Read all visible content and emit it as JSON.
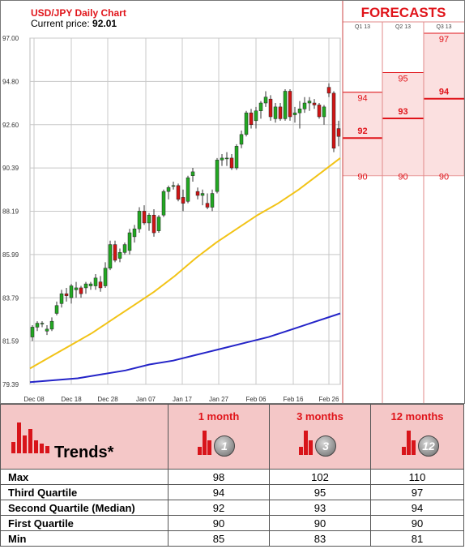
{
  "header": {
    "title": "USD/JPY Daily Chart",
    "price_label": "Current price:",
    "price_value": "92.01"
  },
  "forecast_panel": {
    "title": "FORECASTS",
    "columns": [
      {
        "label": "Q1 13",
        "high": "94",
        "mid": "92",
        "low": "90"
      },
      {
        "label": "Q2 13",
        "high": "95",
        "mid": "93",
        "low": "90"
      },
      {
        "label": "Q3 13",
        "high": "97",
        "mid": "94",
        "low": "90"
      }
    ]
  },
  "chart_data": {
    "type": "candlestick",
    "y_ticks": [
      "97.00",
      "94.80",
      "92.60",
      "90.39",
      "88.19",
      "85.99",
      "83.79",
      "81.59",
      "79.39"
    ],
    "x_ticks": [
      "Dec 08",
      "Dec 18",
      "Dec 28",
      "Jan 07",
      "Jan 17",
      "Jan 27",
      "Feb 06",
      "Feb 16",
      "Feb 26"
    ],
    "ylim": [
      79.39,
      97.0
    ],
    "grid": true,
    "candles": [
      {
        "o": 81.8,
        "h": 82.4,
        "l": 81.6,
        "c": 82.3
      },
      {
        "o": 82.3,
        "h": 82.6,
        "l": 82.1,
        "c": 82.5
      },
      {
        "o": 82.5,
        "h": 82.6,
        "l": 82.3,
        "c": 82.5
      },
      {
        "o": 82.1,
        "h": 82.4,
        "l": 81.9,
        "c": 82.2
      },
      {
        "o": 82.2,
        "h": 82.8,
        "l": 82.1,
        "c": 82.6
      },
      {
        "o": 83.0,
        "h": 83.6,
        "l": 82.9,
        "c": 83.4
      },
      {
        "o": 83.5,
        "h": 84.2,
        "l": 83.3,
        "c": 84.0
      },
      {
        "o": 84.0,
        "h": 84.3,
        "l": 83.6,
        "c": 83.9
      },
      {
        "o": 83.8,
        "h": 84.5,
        "l": 83.5,
        "c": 84.4
      },
      {
        "o": 84.2,
        "h": 84.6,
        "l": 83.8,
        "c": 84.3
      },
      {
        "o": 84.3,
        "h": 84.4,
        "l": 83.8,
        "c": 84.0
      },
      {
        "o": 84.3,
        "h": 84.6,
        "l": 84.0,
        "c": 84.5
      },
      {
        "o": 84.4,
        "h": 84.6,
        "l": 84.2,
        "c": 84.5
      },
      {
        "o": 84.4,
        "h": 85.0,
        "l": 84.2,
        "c": 84.8
      },
      {
        "o": 84.6,
        "h": 84.9,
        "l": 84.1,
        "c": 84.3
      },
      {
        "o": 84.4,
        "h": 85.6,
        "l": 84.3,
        "c": 85.3
      },
      {
        "o": 85.3,
        "h": 86.7,
        "l": 85.2,
        "c": 86.5
      },
      {
        "o": 86.5,
        "h": 86.7,
        "l": 85.6,
        "c": 85.7
      },
      {
        "o": 85.8,
        "h": 86.3,
        "l": 85.6,
        "c": 86.1
      },
      {
        "o": 86.1,
        "h": 86.6,
        "l": 86.0,
        "c": 86.5
      },
      {
        "o": 86.2,
        "h": 87.3,
        "l": 86.0,
        "c": 87.1
      },
      {
        "o": 86.9,
        "h": 87.5,
        "l": 86.6,
        "c": 87.3
      },
      {
        "o": 87.3,
        "h": 88.4,
        "l": 87.1,
        "c": 88.2
      },
      {
        "o": 88.2,
        "h": 88.5,
        "l": 87.5,
        "c": 87.6
      },
      {
        "o": 87.6,
        "h": 88.1,
        "l": 87.2,
        "c": 88.0
      },
      {
        "o": 88.0,
        "h": 88.3,
        "l": 86.9,
        "c": 87.1
      },
      {
        "o": 87.2,
        "h": 88.0,
        "l": 87.1,
        "c": 87.9
      },
      {
        "o": 88.0,
        "h": 89.3,
        "l": 87.9,
        "c": 89.2
      },
      {
        "o": 89.2,
        "h": 89.5,
        "l": 88.8,
        "c": 89.4
      },
      {
        "o": 89.5,
        "h": 89.7,
        "l": 89.3,
        "c": 89.5
      },
      {
        "o": 89.5,
        "h": 89.6,
        "l": 88.7,
        "c": 88.8
      },
      {
        "o": 88.9,
        "h": 89.3,
        "l": 88.2,
        "c": 88.6
      },
      {
        "o": 88.7,
        "h": 90.0,
        "l": 88.6,
        "c": 89.9
      },
      {
        "o": 90.0,
        "h": 90.4,
        "l": 89.7,
        "c": 90.2
      },
      {
        "o": 89.2,
        "h": 89.4,
        "l": 88.8,
        "c": 89.0
      },
      {
        "o": 89.0,
        "h": 89.3,
        "l": 88.5,
        "c": 89.1
      },
      {
        "o": 88.6,
        "h": 89.1,
        "l": 88.3,
        "c": 88.4
      },
      {
        "o": 88.4,
        "h": 89.3,
        "l": 88.2,
        "c": 89.1
      },
      {
        "o": 89.2,
        "h": 90.9,
        "l": 89.1,
        "c": 90.8
      },
      {
        "o": 90.8,
        "h": 91.1,
        "l": 90.5,
        "c": 90.9
      },
      {
        "o": 90.9,
        "h": 91.2,
        "l": 90.5,
        "c": 90.9
      },
      {
        "o": 90.9,
        "h": 91.1,
        "l": 90.3,
        "c": 90.4
      },
      {
        "o": 90.4,
        "h": 91.6,
        "l": 90.3,
        "c": 91.5
      },
      {
        "o": 91.6,
        "h": 92.3,
        "l": 91.4,
        "c": 92.1
      },
      {
        "o": 92.1,
        "h": 93.3,
        "l": 92.0,
        "c": 93.2
      },
      {
        "o": 93.2,
        "h": 93.4,
        "l": 92.4,
        "c": 92.6
      },
      {
        "o": 92.8,
        "h": 93.5,
        "l": 92.4,
        "c": 93.3
      },
      {
        "o": 93.3,
        "h": 93.8,
        "l": 92.9,
        "c": 93.7
      },
      {
        "o": 93.7,
        "h": 94.3,
        "l": 93.5,
        "c": 94.0
      },
      {
        "o": 93.9,
        "h": 94.1,
        "l": 92.8,
        "c": 93.0
      },
      {
        "o": 92.9,
        "h": 93.7,
        "l": 92.7,
        "c": 93.5
      },
      {
        "o": 93.5,
        "h": 93.7,
        "l": 92.8,
        "c": 92.9
      },
      {
        "o": 92.9,
        "h": 94.4,
        "l": 92.8,
        "c": 94.3
      },
      {
        "o": 94.3,
        "h": 94.4,
        "l": 92.8,
        "c": 93.0
      },
      {
        "o": 93.1,
        "h": 93.5,
        "l": 92.7,
        "c": 93.2
      },
      {
        "o": 93.2,
        "h": 93.8,
        "l": 92.4,
        "c": 93.4
      },
      {
        "o": 93.4,
        "h": 94.0,
        "l": 93.2,
        "c": 93.7
      },
      {
        "o": 93.7,
        "h": 94.0,
        "l": 93.3,
        "c": 93.8
      },
      {
        "o": 93.7,
        "h": 93.9,
        "l": 93.4,
        "c": 93.6
      },
      {
        "o": 93.6,
        "h": 93.7,
        "l": 92.9,
        "c": 93.0
      },
      {
        "o": 93.0,
        "h": 93.6,
        "l": 92.6,
        "c": 93.5
      },
      {
        "o": 94.5,
        "h": 94.7,
        "l": 94.0,
        "c": 94.2
      },
      {
        "o": 94.2,
        "h": 94.3,
        "l": 91.2,
        "c": 91.4
      },
      {
        "o": 92.4,
        "h": 92.8,
        "l": 91.5,
        "c": 92.0
      }
    ],
    "ma_short": [
      80.2,
      80.8,
      81.4,
      82.0,
      82.7,
      83.4,
      84.1,
      84.9,
      85.8,
      86.6,
      87.3,
      88.0,
      88.6,
      89.3,
      90.1,
      90.9
    ],
    "ma_long": [
      79.5,
      79.6,
      79.7,
      79.9,
      80.1,
      80.4,
      80.6,
      80.9,
      81.2,
      81.5,
      81.8,
      82.2,
      82.6,
      83.0
    ],
    "colors": {
      "up": "#22a822",
      "down": "#d01414",
      "ma_short": "#f2c316",
      "ma_long": "#2424c8",
      "forecast_bg": "#fbe0e0",
      "forecast_accent": "#e0141a"
    }
  },
  "trends": {
    "title": "Trends*",
    "horizons": [
      {
        "label": "1 month",
        "icon_number": "1"
      },
      {
        "label": "3 months",
        "icon_number": "3"
      },
      {
        "label": "12 months",
        "icon_number": "12"
      }
    ],
    "rows": [
      {
        "label": "Max",
        "values": [
          "98",
          "102",
          "110"
        ]
      },
      {
        "label": "Third Quartile",
        "values": [
          "94",
          "95",
          "97"
        ]
      },
      {
        "label": "Second Quartile (Median)",
        "values": [
          "92",
          "93",
          "94"
        ]
      },
      {
        "label": "First Quartile",
        "values": [
          "90",
          "90",
          "90"
        ]
      },
      {
        "label": "Min",
        "values": [
          "85",
          "83",
          "81"
        ]
      }
    ]
  }
}
